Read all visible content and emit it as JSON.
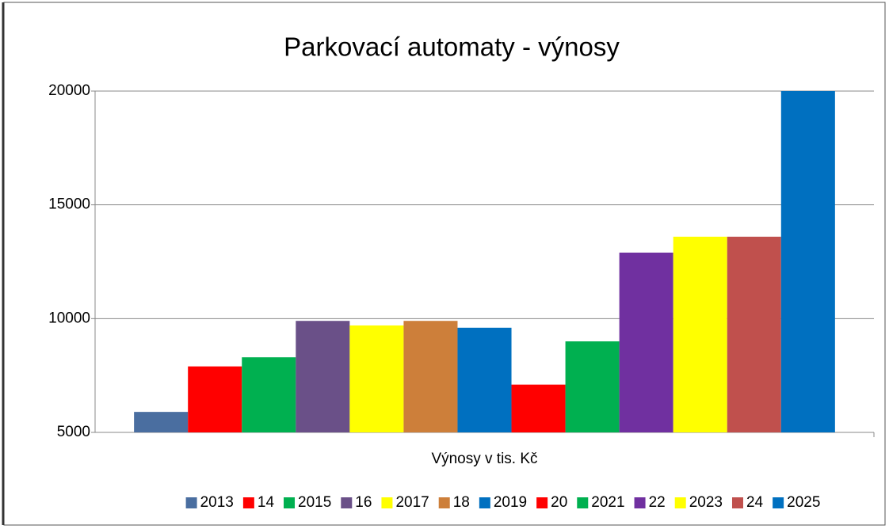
{
  "chart_data": {
    "type": "bar",
    "title": "Parkovací automaty - výnosy",
    "categories": [
      "Výnosy v tis. Kč"
    ],
    "series": [
      {
        "name": "2013",
        "color": "#4a6ea0",
        "values": [
          5900
        ]
      },
      {
        "name": "14",
        "color": "#ff0000",
        "values": [
          7900
        ]
      },
      {
        "name": "2015",
        "color": "#00b050",
        "values": [
          8300
        ]
      },
      {
        "name": "16",
        "color": "#6a5088",
        "values": [
          9900
        ]
      },
      {
        "name": "2017",
        "color": "#ffff00",
        "values": [
          9700
        ]
      },
      {
        "name": "18",
        "color": "#cd7f3a",
        "values": [
          9900
        ]
      },
      {
        "name": "2019",
        "color": "#0070c0",
        "values": [
          9600
        ]
      },
      {
        "name": "20",
        "color": "#ff0000",
        "values": [
          7100
        ]
      },
      {
        "name": "2021",
        "color": "#00b050",
        "values": [
          9000
        ]
      },
      {
        "name": "22",
        "color": "#7030a0",
        "values": [
          12900
        ]
      },
      {
        "name": "2023",
        "color": "#ffff00",
        "values": [
          13600
        ]
      },
      {
        "name": "24",
        "color": "#c0504d",
        "values": [
          13600
        ]
      },
      {
        "name": "2025",
        "color": "#0070c0",
        "values": [
          20000
        ]
      }
    ],
    "ylim": [
      5000,
      20000
    ],
    "yticks": [
      5000,
      10000,
      15000,
      20000
    ],
    "grid": true,
    "legend": "bottom"
  }
}
